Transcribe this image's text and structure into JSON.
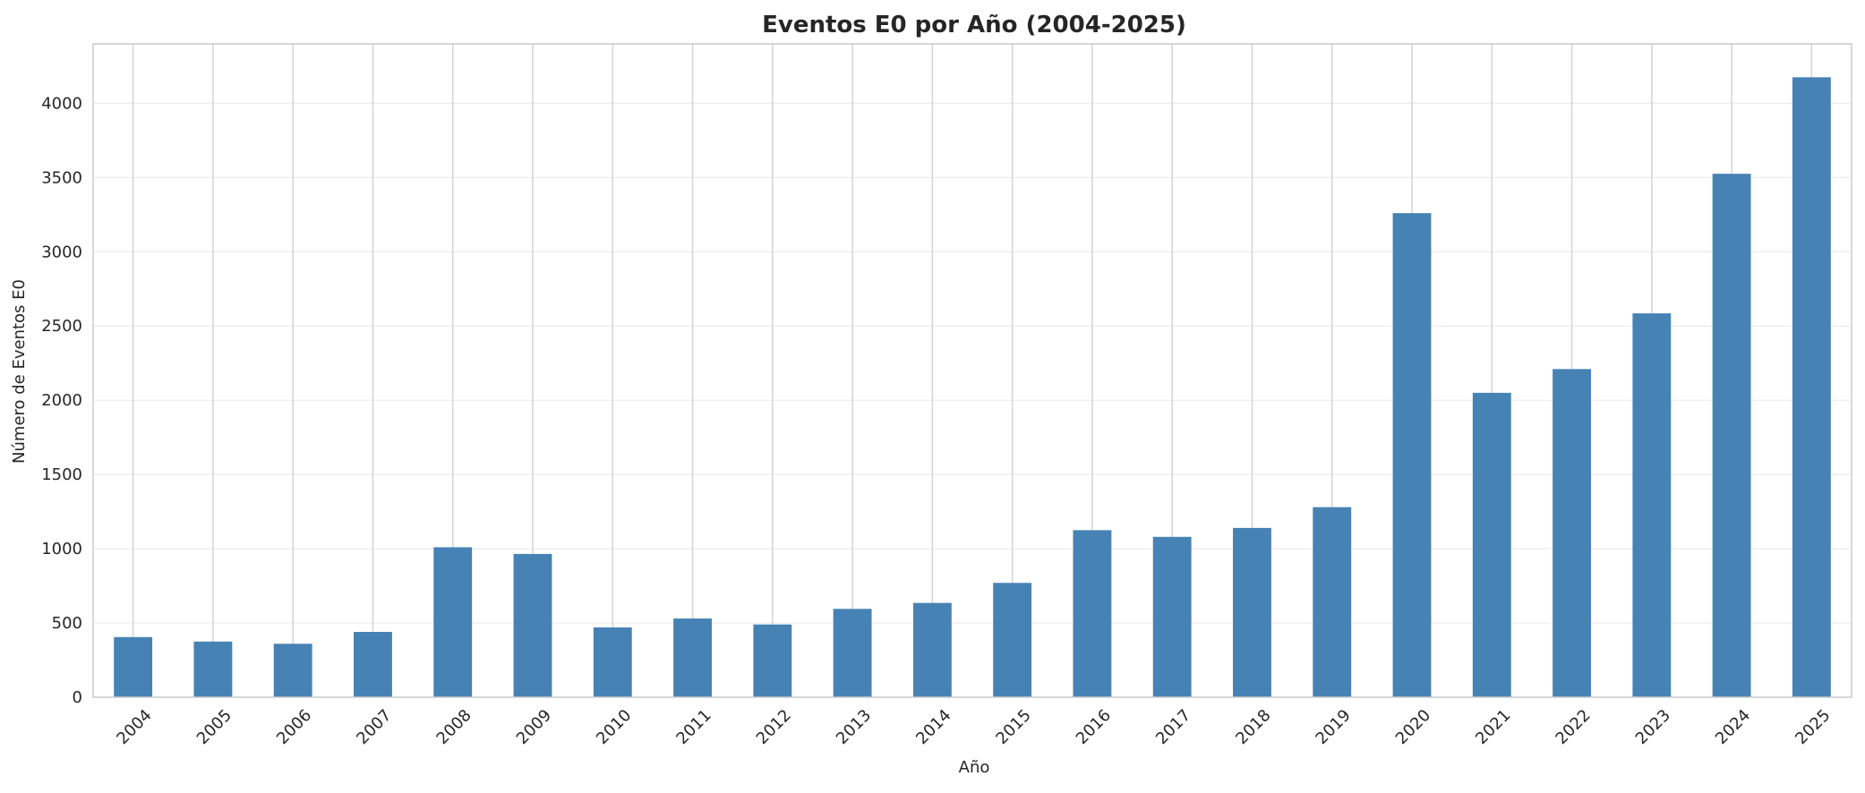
{
  "chart_data": {
    "type": "bar",
    "title": "Eventos E0 por Año (2004-2025)",
    "xlabel": "Año",
    "ylabel": "Número de Eventos E0",
    "categories": [
      "2004",
      "2005",
      "2006",
      "2007",
      "2008",
      "2009",
      "2010",
      "2011",
      "2012",
      "2013",
      "2014",
      "2015",
      "2016",
      "2017",
      "2018",
      "2019",
      "2020",
      "2021",
      "2022",
      "2023",
      "2024",
      "2025"
    ],
    "values": [
      405,
      375,
      360,
      440,
      1010,
      965,
      470,
      530,
      490,
      595,
      635,
      770,
      1125,
      1080,
      1140,
      1280,
      3260,
      2050,
      2210,
      2585,
      3525,
      4175
    ],
    "ylim": [
      0,
      4400
    ],
    "yticks": [
      0,
      500,
      1000,
      1500,
      2000,
      2500,
      3000,
      3500,
      4000
    ],
    "bar_color": "#4682b4",
    "grid": true,
    "legend": "none"
  }
}
